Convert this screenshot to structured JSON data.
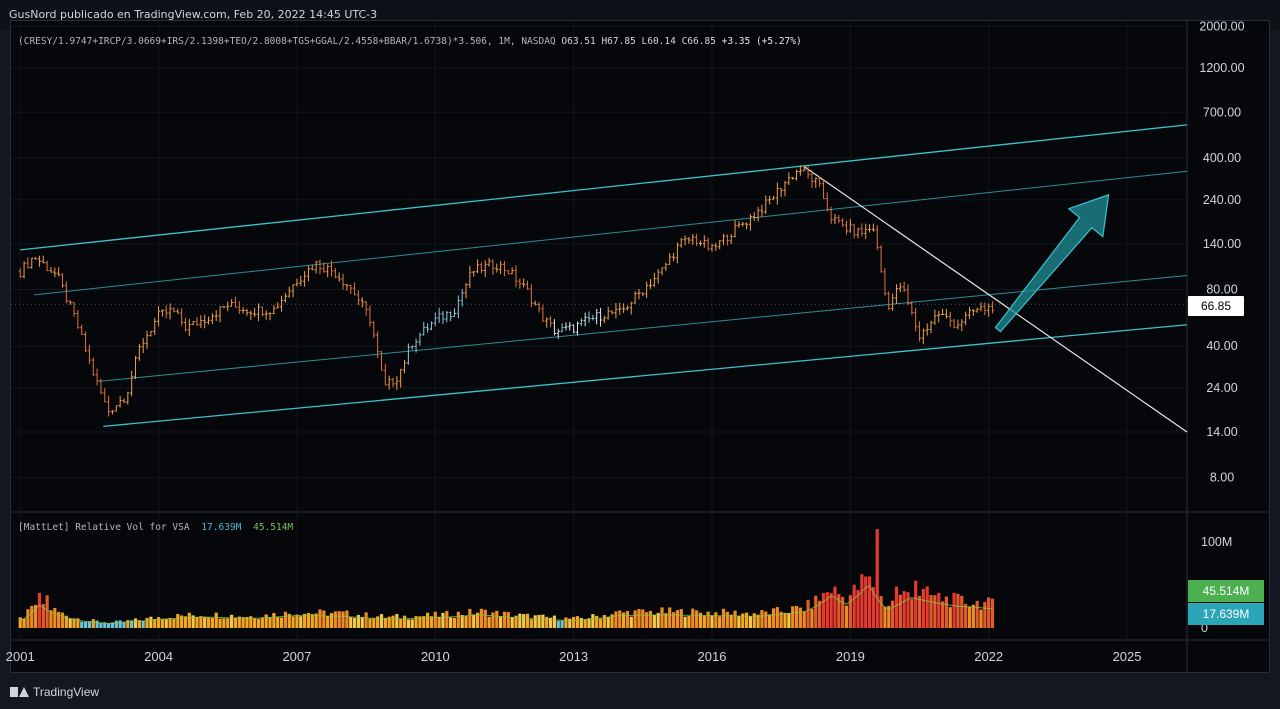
{
  "header": {
    "author_line": "GusNord publicado en TradingView.com, Feb 20, 2022 14:45 UTC-3"
  },
  "legend": {
    "symbol": "(CRESY/1.9747+IRCP/3.0669+IRS/2.1398+TEO/2.8008+TGS+GGAL/2.4558+BBAR/1.6738)*3.506, 1M, NASDAQ",
    "open": "O63.51",
    "high": "H67.85",
    "low": "L60.14",
    "close": "C66.85",
    "change": "+3.35 (+5.27%)"
  },
  "volume_legend": {
    "name": "[MattLet] Relative Vol for VSA",
    "value1": "17.639M",
    "value2": "45.514M"
  },
  "price_badge": "66.85",
  "volume_badges": {
    "upper": "45.514M",
    "lower": "17.639M"
  },
  "footer": {
    "brand": "TradingView"
  },
  "colors": {
    "background": "#06070b",
    "channel": "#39c5cf",
    "midline": "#2a8d97",
    "trendline": "#e8e8e8",
    "arrow": "#1f8f96",
    "price_up": "#f0a04b",
    "price_cool": "#8ec8d8"
  },
  "chart_data": {
    "type": "bar",
    "title": "",
    "scale": "log",
    "x_ticks": [
      "2001",
      "2004",
      "2007",
      "2010",
      "2013",
      "2016",
      "2019",
      "2022",
      "2025"
    ],
    "y_ticks": [
      "2000.00",
      "1200.00",
      "700.00",
      "400.00",
      "240.00",
      "140.00",
      "80.00",
      "40.00",
      "24.00",
      "14.00",
      "8.00"
    ],
    "volume_ticks": [
      "100M",
      "0"
    ],
    "ylim": [
      6,
      2000
    ],
    "xlim": [
      2000.8,
      2026.3
    ],
    "last_price": 66.85,
    "price_anchors": [
      [
        2001.0,
        100
      ],
      [
        2001.3,
        120
      ],
      [
        2001.8,
        95
      ],
      [
        2002.2,
        55
      ],
      [
        2002.6,
        28
      ],
      [
        2002.9,
        18
      ],
      [
        2003.3,
        22
      ],
      [
        2003.6,
        40
      ],
      [
        2004.0,
        58
      ],
      [
        2004.3,
        62
      ],
      [
        2004.6,
        50
      ],
      [
        2005.0,
        56
      ],
      [
        2005.5,
        66
      ],
      [
        2006.0,
        62
      ],
      [
        2006.5,
        63
      ],
      [
        2007.0,
        90
      ],
      [
        2007.4,
        110
      ],
      [
        2007.8,
        100
      ],
      [
        2008.2,
        80
      ],
      [
        2008.6,
        55
      ],
      [
        2008.9,
        24
      ],
      [
        2009.2,
        28
      ],
      [
        2009.5,
        42
      ],
      [
        2010.0,
        55
      ],
      [
        2010.4,
        62
      ],
      [
        2010.8,
        100
      ],
      [
        2011.3,
        110
      ],
      [
        2011.6,
        100
      ],
      [
        2012.0,
        78
      ],
      [
        2012.3,
        58
      ],
      [
        2012.6,
        48
      ],
      [
        2013.0,
        50
      ],
      [
        2013.3,
        55
      ],
      [
        2013.7,
        60
      ],
      [
        2014.0,
        60
      ],
      [
        2014.5,
        80
      ],
      [
        2014.9,
        100
      ],
      [
        2015.3,
        140
      ],
      [
        2015.6,
        150
      ],
      [
        2016.0,
        130
      ],
      [
        2016.4,
        160
      ],
      [
        2016.8,
        190
      ],
      [
        2017.2,
        230
      ],
      [
        2017.6,
        300
      ],
      [
        2017.9,
        350
      ],
      [
        2018.3,
        290
      ],
      [
        2018.6,
        190
      ],
      [
        2018.9,
        170
      ],
      [
        2019.2,
        160
      ],
      [
        2019.5,
        170
      ],
      [
        2019.8,
        65
      ],
      [
        2020.1,
        85
      ],
      [
        2020.5,
        45
      ],
      [
        2020.9,
        60
      ],
      [
        2021.3,
        52
      ],
      [
        2021.7,
        62
      ],
      [
        2022.0,
        64
      ],
      [
        2022.15,
        66.85
      ]
    ],
    "volume_anchors": [
      [
        2001.0,
        10
      ],
      [
        2001.4,
        32
      ],
      [
        2001.8,
        18
      ],
      [
        2002.5,
        8
      ],
      [
        2003.0,
        6
      ],
      [
        2004.0,
        12
      ],
      [
        2005.0,
        15
      ],
      [
        2006.0,
        13
      ],
      [
        2007.0,
        17
      ],
      [
        2008.0,
        16
      ],
      [
        2009.0,
        12
      ],
      [
        2010.0,
        14
      ],
      [
        2011.0,
        18
      ],
      [
        2012.0,
        13
      ],
      [
        2013.0,
        10
      ],
      [
        2014.0,
        17
      ],
      [
        2015.0,
        18
      ],
      [
        2016.0,
        17
      ],
      [
        2017.0,
        16
      ],
      [
        2018.0,
        22
      ],
      [
        2018.6,
        45
      ],
      [
        2018.9,
        32
      ],
      [
        2019.4,
        60
      ],
      [
        2019.8,
        25
      ],
      [
        2020.3,
        42
      ],
      [
        2020.8,
        35
      ],
      [
        2021.3,
        30
      ],
      [
        2021.8,
        28
      ],
      [
        2022.1,
        26
      ]
    ],
    "volume_spikes": [
      [
        2019.6,
        115
      ],
      [
        2019.4,
        60
      ],
      [
        2020.4,
        55
      ],
      [
        2020.0,
        48
      ],
      [
        2018.7,
        48
      ],
      [
        2001.6,
        38
      ]
    ],
    "channel": {
      "upper": [
        [
          2001.0,
          130
        ],
        [
          2026.3,
          600
        ]
      ],
      "lower": [
        [
          2002.8,
          15
        ],
        [
          2026.3,
          52
        ]
      ],
      "mid_upper": [
        [
          2001.3,
          75
        ],
        [
          2026.3,
          340
        ]
      ],
      "mid_lower": [
        [
          2002.7,
          26
        ],
        [
          2026.3,
          95
        ]
      ]
    },
    "trendline": [
      [
        2018.0,
        360
      ],
      [
        2026.3,
        14
      ]
    ],
    "arrow": {
      "from": [
        2022.2,
        49
      ],
      "to": [
        2024.6,
        255
      ]
    }
  }
}
